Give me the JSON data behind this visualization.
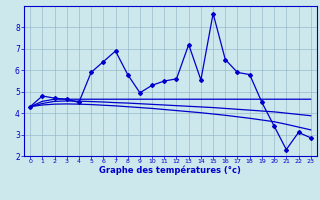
{
  "xlabel": "Graphe des températures (°c)",
  "x_values": [
    0,
    1,
    2,
    3,
    4,
    5,
    6,
    7,
    8,
    9,
    10,
    11,
    12,
    13,
    14,
    15,
    16,
    17,
    18,
    19,
    20,
    21,
    22,
    23
  ],
  "main_line": [
    4.3,
    4.8,
    4.7,
    4.65,
    4.5,
    5.9,
    6.4,
    6.9,
    5.8,
    4.95,
    5.3,
    5.5,
    5.6,
    7.2,
    5.55,
    8.65,
    6.5,
    5.9,
    5.8,
    4.5,
    3.4,
    2.3,
    3.1,
    2.85
  ],
  "trend_flat": [
    4.3,
    4.55,
    4.65,
    4.65,
    4.65,
    4.65,
    4.65,
    4.65,
    4.65,
    4.65,
    4.65,
    4.65,
    4.65,
    4.65,
    4.65,
    4.65,
    4.65,
    4.65,
    4.65,
    4.65,
    4.65,
    4.65,
    4.65,
    4.65
  ],
  "trend_mid": [
    4.3,
    4.45,
    4.55,
    4.57,
    4.56,
    4.54,
    4.52,
    4.49,
    4.47,
    4.44,
    4.41,
    4.38,
    4.35,
    4.32,
    4.29,
    4.26,
    4.22,
    4.18,
    4.14,
    4.1,
    4.06,
    4.0,
    3.94,
    3.88
  ],
  "trend_steep": [
    4.3,
    4.38,
    4.42,
    4.43,
    4.42,
    4.4,
    4.37,
    4.34,
    4.3,
    4.26,
    4.22,
    4.17,
    4.12,
    4.07,
    4.02,
    3.96,
    3.9,
    3.83,
    3.76,
    3.68,
    3.6,
    3.48,
    3.35,
    3.22
  ],
  "line_color": "#0000cc",
  "bg_color": "#cce8ec",
  "grid_color": "#99bbcc",
  "ylim": [
    2.0,
    9.0
  ],
  "xlim": [
    -0.5,
    23.5
  ],
  "yticks": [
    2,
    3,
    4,
    5,
    6,
    7,
    8
  ],
  "xticks": [
    0,
    1,
    2,
    3,
    4,
    5,
    6,
    7,
    8,
    9,
    10,
    11,
    12,
    13,
    14,
    15,
    16,
    17,
    18,
    19,
    20,
    21,
    22,
    23
  ]
}
